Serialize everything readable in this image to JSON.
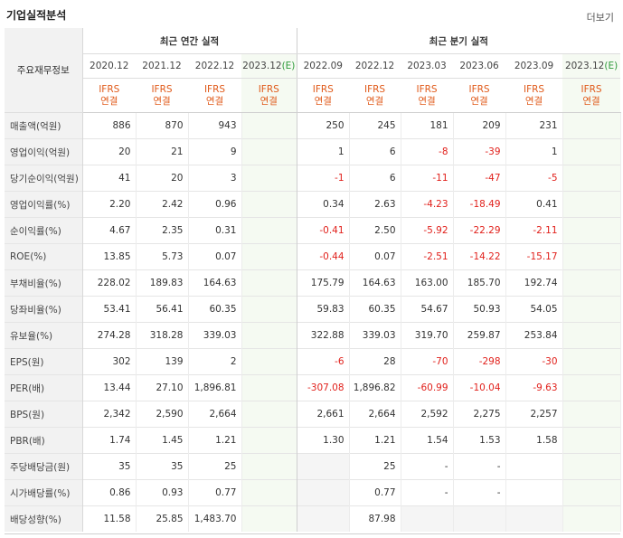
{
  "header": {
    "title": "기업실적분석",
    "more_label": "더보기"
  },
  "table": {
    "row_header_label": "주요재무정보",
    "group_annual": "최근 연간 실적",
    "group_quarter": "최근 분기 실적",
    "periods": [
      "2020.12",
      "2021.12",
      "2022.12",
      "2023.12(E)",
      "2022.09",
      "2022.12",
      "2023.03",
      "2023.06",
      "2023.09",
      "2023.12(E)"
    ],
    "ifrs_top": "IFRS",
    "ifrs_bottom": "연결",
    "rows": [
      {
        "label": "매출액(억원)",
        "values": [
          "886",
          "870",
          "943",
          "",
          "250",
          "245",
          "181",
          "209",
          "231",
          ""
        ]
      },
      {
        "label": "영업이익(억원)",
        "values": [
          "20",
          "21",
          "9",
          "",
          "1",
          "6",
          "-8",
          "-39",
          "1",
          ""
        ]
      },
      {
        "label": "당기순이익(억원)",
        "values": [
          "41",
          "20",
          "3",
          "",
          "-1",
          "6",
          "-11",
          "-47",
          "-5",
          ""
        ]
      },
      {
        "label": "영업이익률(%)",
        "values": [
          "2.20",
          "2.42",
          "0.96",
          "",
          "0.34",
          "2.63",
          "-4.23",
          "-18.49",
          "0.41",
          ""
        ]
      },
      {
        "label": "순이익률(%)",
        "values": [
          "4.67",
          "2.35",
          "0.31",
          "",
          "-0.41",
          "2.50",
          "-5.92",
          "-22.29",
          "-2.11",
          ""
        ]
      },
      {
        "label": "ROE(%)",
        "values": [
          "13.85",
          "5.73",
          "0.07",
          "",
          "-0.44",
          "0.07",
          "-2.51",
          "-14.22",
          "-15.17",
          ""
        ]
      },
      {
        "label": "부채비율(%)",
        "values": [
          "228.02",
          "189.83",
          "164.63",
          "",
          "175.79",
          "164.63",
          "163.00",
          "185.70",
          "192.74",
          ""
        ]
      },
      {
        "label": "당좌비율(%)",
        "values": [
          "53.41",
          "56.41",
          "60.35",
          "",
          "59.83",
          "60.35",
          "54.67",
          "50.93",
          "54.05",
          ""
        ]
      },
      {
        "label": "유보율(%)",
        "values": [
          "274.28",
          "318.28",
          "339.03",
          "",
          "322.88",
          "339.03",
          "319.70",
          "259.87",
          "253.84",
          ""
        ]
      },
      {
        "label": "EPS(원)",
        "values": [
          "302",
          "139",
          "2",
          "",
          "-6",
          "28",
          "-70",
          "-298",
          "-30",
          ""
        ]
      },
      {
        "label": "PER(배)",
        "values": [
          "13.44",
          "27.10",
          "1,896.81",
          "",
          "-307.08",
          "1,896.82",
          "-60.99",
          "-10.04",
          "-9.63",
          ""
        ]
      },
      {
        "label": "BPS(원)",
        "values": [
          "2,342",
          "2,590",
          "2,664",
          "",
          "2,661",
          "2,664",
          "2,592",
          "2,275",
          "2,257",
          ""
        ]
      },
      {
        "label": "PBR(배)",
        "values": [
          "1.74",
          "1.45",
          "1.21",
          "",
          "1.30",
          "1.21",
          "1.54",
          "1.53",
          "1.58",
          ""
        ]
      },
      {
        "label": "주당배당금(원)",
        "values": [
          "35",
          "35",
          "25",
          "",
          "",
          "25",
          "-",
          "-",
          "",
          ""
        ]
      },
      {
        "label": "시가배당률(%)",
        "values": [
          "0.86",
          "0.93",
          "0.77",
          "",
          "",
          "0.77",
          "-",
          "-",
          "",
          ""
        ]
      },
      {
        "label": "배당성향(%)",
        "values": [
          "11.58",
          "25.85",
          "1,483.70",
          "",
          "",
          "87.98",
          "",
          "",
          "",
          ""
        ]
      }
    ]
  }
}
